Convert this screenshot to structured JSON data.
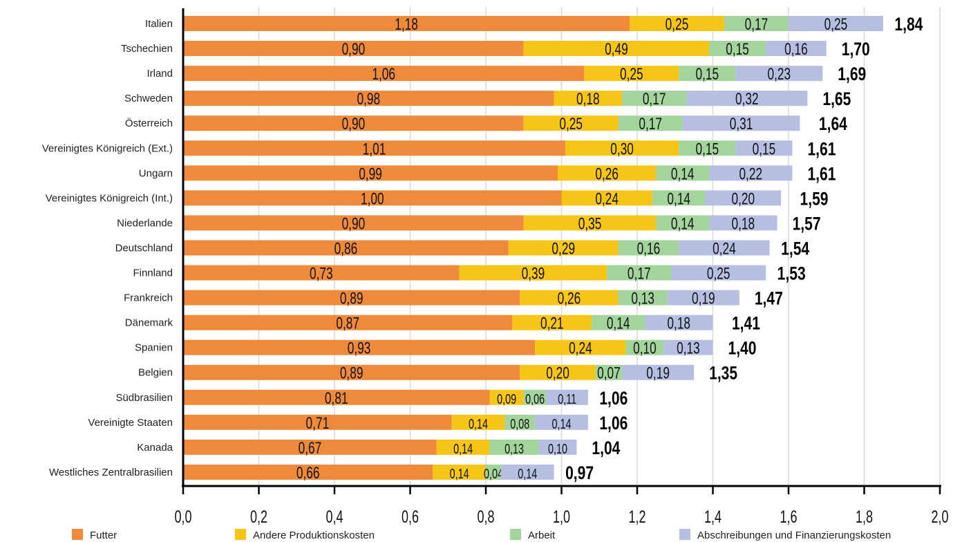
{
  "chart_data": {
    "type": "bar",
    "orientation": "horizontal",
    "stacked": true,
    "categories": [
      "Italien",
      "Tschechien",
      "Irland",
      "Schweden",
      "Österreich",
      "Vereinigtes Königreich (Ext.)",
      "Ungarn",
      "Vereinigtes Königreich (Int.)",
      "Niederlande",
      "Deutschland",
      "Finnland",
      "Frankreich",
      "Dänemark",
      "Spanien",
      "Belgien",
      "Südbrasilien",
      "Vereinigte Staaten",
      "Kanada",
      "Westliches Zentralbrasilien"
    ],
    "series": [
      {
        "name": "Futter",
        "color": "#EE8A3A",
        "values": [
          1.18,
          0.9,
          1.06,
          0.98,
          0.9,
          1.01,
          0.99,
          1.0,
          0.9,
          0.86,
          0.73,
          0.89,
          0.87,
          0.93,
          0.89,
          0.81,
          0.71,
          0.67,
          0.66
        ],
        "labels": [
          "1,18",
          "0,90",
          "1,06",
          "0,98",
          "0,90",
          "1,01",
          "0,99",
          "1,00",
          "0,90",
          "0,86",
          "0,73",
          "0,89",
          "0,87",
          "0,93",
          "0,89",
          "0,81",
          "0,71",
          "0,67",
          "0,66"
        ]
      },
      {
        "name": "Andere Produktionskosten",
        "color": "#F5C518",
        "values": [
          0.25,
          0.49,
          0.25,
          0.18,
          0.25,
          0.3,
          0.26,
          0.24,
          0.35,
          0.29,
          0.39,
          0.26,
          0.21,
          0.24,
          0.2,
          0.09,
          0.14,
          0.14,
          0.14
        ],
        "labels": [
          "0,25",
          "0,49",
          "0,25",
          "0,18",
          "0,25",
          "0,30",
          "0,26",
          "0,24",
          "0,35",
          "0,29",
          "0,39",
          "0,26",
          "0,21",
          "0,24",
          "0,20",
          "0,09",
          "0,14",
          "0,14",
          "0,14"
        ]
      },
      {
        "name": "Arbeit",
        "color": "#A3D49C",
        "values": [
          0.17,
          0.15,
          0.15,
          0.17,
          0.17,
          0.15,
          0.14,
          0.14,
          0.14,
          0.16,
          0.17,
          0.13,
          0.14,
          0.1,
          0.07,
          0.06,
          0.08,
          0.13,
          0.04
        ],
        "labels": [
          "0,17",
          "0,15",
          "0,15",
          "0,17",
          "0,17",
          "0,15",
          "0,14",
          "0,14",
          "0,14",
          "0,16",
          "0,17",
          "0,13",
          "0,14",
          "0,10",
          "0,07",
          "0,06",
          "0,08",
          "0,13",
          "0,04"
        ]
      },
      {
        "name": "Abschreibungen und Finanzierungskosten",
        "color": "#B6BEE2",
        "values": [
          0.25,
          0.16,
          0.23,
          0.32,
          0.31,
          0.15,
          0.22,
          0.2,
          0.18,
          0.24,
          0.25,
          0.19,
          0.18,
          0.13,
          0.19,
          0.11,
          0.14,
          0.1,
          0.14
        ],
        "labels": [
          "0,25",
          "0,16",
          "0,23",
          "0,32",
          "0,31",
          "0,15",
          "0,22",
          "0,20",
          "0,18",
          "0,24",
          "0,25",
          "0,19",
          "0,18",
          "0,13",
          "0,19",
          "0,11",
          "0,14",
          "0,10",
          "0,14"
        ]
      }
    ],
    "totals": [
      1.84,
      1.7,
      1.69,
      1.65,
      1.64,
      1.61,
      1.61,
      1.59,
      1.57,
      1.54,
      1.53,
      1.47,
      1.41,
      1.4,
      1.35,
      1.06,
      1.06,
      1.04,
      0.97
    ],
    "total_labels": [
      "1,84",
      "1,70",
      "1,69",
      "1,65",
      "1,64",
      "1,61",
      "1,61",
      "1,59",
      "1,57",
      "1,54",
      "1,53",
      "1,47",
      "1,41",
      "1,40",
      "1,35",
      "1,06",
      "1,06",
      "1,04",
      "0,97"
    ],
    "xlim": [
      0,
      2.0
    ],
    "xticks": [
      "0,0",
      "0,2",
      "0,4",
      "0,6",
      "0,8",
      "1,0",
      "1,2",
      "1,4",
      "1,6",
      "1,8",
      "2,0"
    ],
    "grid": true,
    "legend_position": "bottom",
    "title": "",
    "xlabel": "",
    "ylabel": ""
  }
}
